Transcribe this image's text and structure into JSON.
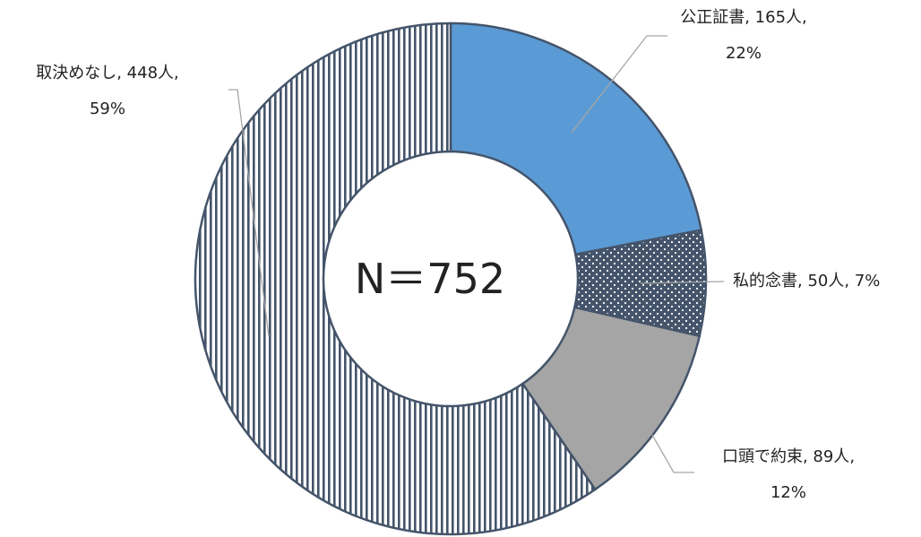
{
  "chart_data": {
    "type": "donut",
    "categories": [
      "公正証書",
      "私的念書",
      "口頭で約束",
      "取決めなし"
    ],
    "values": [
      165,
      50,
      89,
      448
    ],
    "value_labels": [
      "165人",
      "50人",
      "89人",
      "448人"
    ],
    "share_labels": [
      "22%",
      "7%",
      "12%",
      "59%"
    ],
    "separator": ", ",
    "colors": [
      "#5b9bd5",
      "#44546a",
      "#a5a5a5",
      "#44546a"
    ],
    "patterns": [
      null,
      "dots",
      null,
      "vertical-stripes"
    ],
    "total_prefix": "N＝",
    "total": 752
  }
}
